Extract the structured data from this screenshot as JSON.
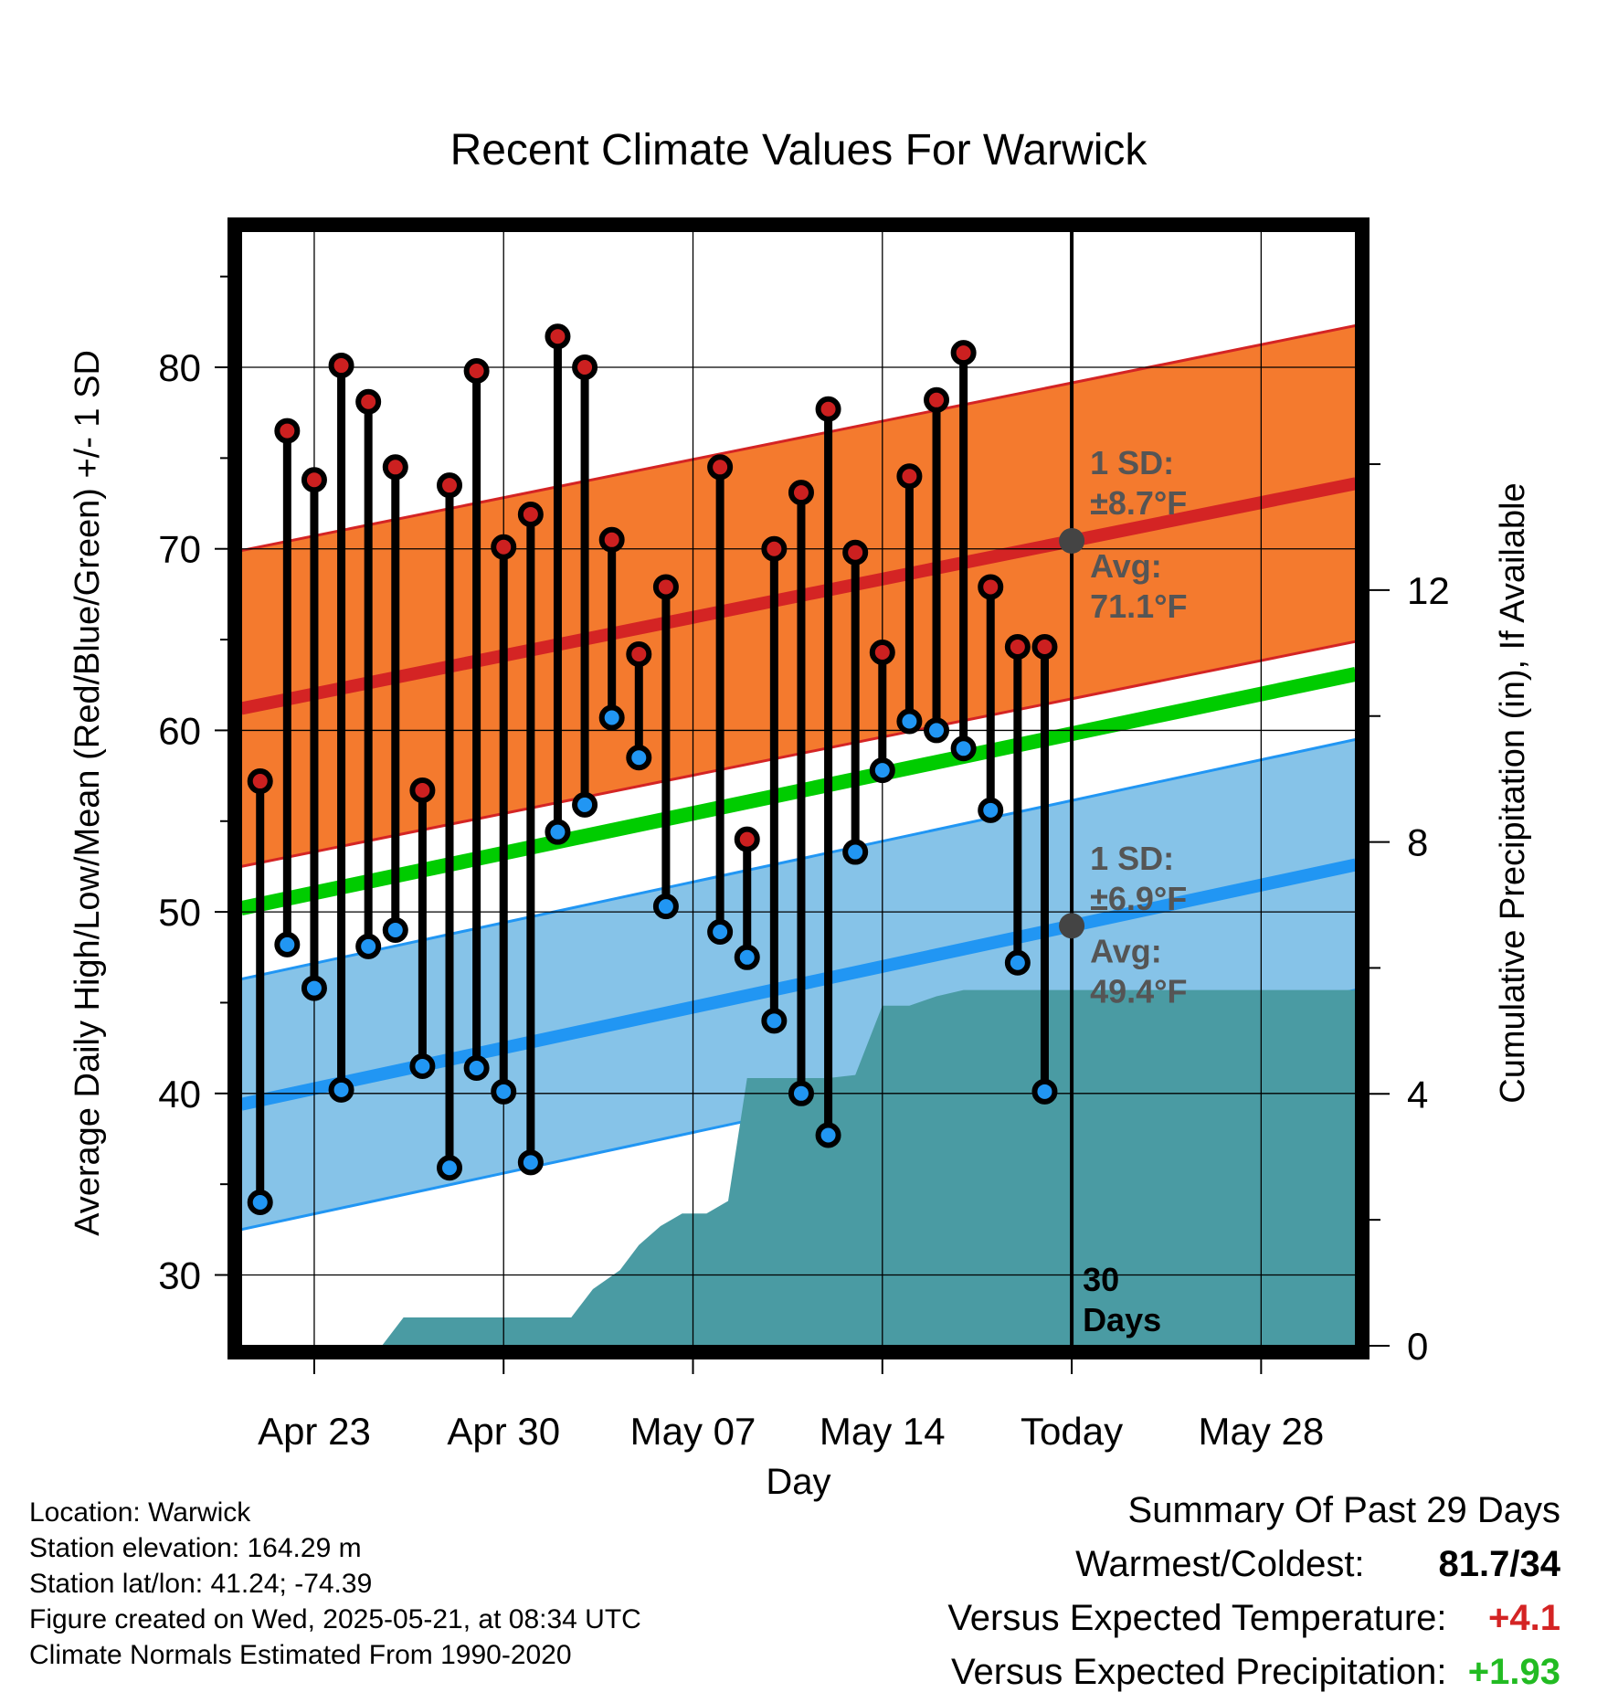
{
  "chart_data": {
    "type": "line",
    "title": "Recent Climate Values For Warwick",
    "xlabel": "Day",
    "ylabel": "Average Daily High/Low/Mean (Red/Blue/Green) +/- 1 SD",
    "y2label": "Cumulative Precipitation (in), If Available",
    "xlim": [
      -0.7,
      40.5
    ],
    "ylim": [
      26.1,
      87.5
    ],
    "y2lim": [
      0,
      17.7
    ],
    "x_ticks": [
      {
        "x": 2,
        "label": "Apr 23"
      },
      {
        "x": 9,
        "label": "Apr 30"
      },
      {
        "x": 16,
        "label": "May 07"
      },
      {
        "x": 23,
        "label": "May 14"
      },
      {
        "x": 30,
        "label": "Today"
      },
      {
        "x": 37,
        "label": "May 28"
      }
    ],
    "y_ticks": [
      30,
      40,
      50,
      60,
      70,
      80
    ],
    "y2_ticks": [
      0,
      4,
      8,
      12
    ],
    "x_day0": "Apr 21",
    "normals": {
      "high_avg": {
        "start": 61.2,
        "end": 73.6
      },
      "high_sd": 8.7,
      "low_avg": {
        "start": 39.4,
        "end": 52.6
      },
      "low_sd": 6.9,
      "mean_avg": {
        "start": 50.2,
        "end": 63.1
      }
    },
    "daily": [
      {
        "day": 0,
        "high": 57.2,
        "low": 34.0
      },
      {
        "day": 1,
        "high": 76.5,
        "low": 48.2
      },
      {
        "day": 2,
        "high": 73.8,
        "low": 45.8
      },
      {
        "day": 3,
        "high": 80.1,
        "low": 40.2
      },
      {
        "day": 4,
        "high": 78.1,
        "low": 48.1
      },
      {
        "day": 5,
        "high": 74.5,
        "low": 49.0
      },
      {
        "day": 6,
        "high": 56.7,
        "low": 41.5
      },
      {
        "day": 7,
        "high": 73.5,
        "low": 35.9
      },
      {
        "day": 8,
        "high": 79.8,
        "low": 41.4
      },
      {
        "day": 9,
        "high": 70.1,
        "low": 40.1
      },
      {
        "day": 10,
        "high": 71.9,
        "low": 36.2
      },
      {
        "day": 11,
        "high": 81.7,
        "low": 54.4
      },
      {
        "day": 12,
        "high": 80.0,
        "low": 55.9
      },
      {
        "day": 13,
        "high": 70.5,
        "low": 60.7
      },
      {
        "day": 14,
        "high": 64.2,
        "low": 58.5
      },
      {
        "day": 15,
        "high": 67.9,
        "low": 50.3
      },
      {
        "day": 17,
        "high": 74.5,
        "low": 48.9
      },
      {
        "day": 18,
        "high": 54.0,
        "low": 47.5
      },
      {
        "day": 19,
        "high": 70.0,
        "low": 44.0
      },
      {
        "day": 20,
        "high": 73.1,
        "low": 40.0
      },
      {
        "day": 21,
        "high": 77.7,
        "low": 37.7
      },
      {
        "day": 22,
        "high": 69.8,
        "low": 53.3
      },
      {
        "day": 23,
        "high": 64.3,
        "low": 57.8
      },
      {
        "day": 24,
        "high": 74.0,
        "low": 60.5
      },
      {
        "day": 25,
        "high": 78.2,
        "low": 60.0
      },
      {
        "day": 26,
        "high": 80.8,
        "low": 59.0
      },
      {
        "day": 27,
        "high": 67.9,
        "low": 55.6
      },
      {
        "day": 28,
        "high": 64.6,
        "low": 47.2
      },
      {
        "day": 29,
        "high": 64.6,
        "low": 40.1
      }
    ],
    "precip_cumulative": [
      {
        "x": 4.5,
        "y": 0
      },
      {
        "x": 5.3,
        "y": 0.45
      },
      {
        "x": 11.5,
        "y": 0.45
      },
      {
        "x": 12.3,
        "y": 0.9
      },
      {
        "x": 13.3,
        "y": 1.2
      },
      {
        "x": 14.0,
        "y": 1.6
      },
      {
        "x": 14.8,
        "y": 1.9
      },
      {
        "x": 15.6,
        "y": 2.1
      },
      {
        "x": 16.5,
        "y": 2.1
      },
      {
        "x": 17.3,
        "y": 2.3
      },
      {
        "x": 18.0,
        "y": 4.25
      },
      {
        "x": 21.0,
        "y": 4.25
      },
      {
        "x": 22.0,
        "y": 4.3
      },
      {
        "x": 23.0,
        "y": 5.4
      },
      {
        "x": 24.0,
        "y": 5.4
      },
      {
        "x": 25.0,
        "y": 5.55
      },
      {
        "x": 26.0,
        "y": 5.65
      },
      {
        "x": 40.5,
        "y": 5.65
      }
    ],
    "annotations": {
      "high_sd": [
        "1 SD:",
        "±8.7°F"
      ],
      "high_avg": [
        "Avg:",
        "71.1°F"
      ],
      "low_sd": [
        "1 SD:",
        "±6.9°F"
      ],
      "low_avg": [
        "Avg:",
        "49.4°F"
      ],
      "today_days": [
        "30",
        "Days"
      ]
    },
    "colors": {
      "high_band": "#f47a2e",
      "high_line": "#d42424",
      "low_band": "#86c3e8",
      "low_line": "#2196f3",
      "mean_line": "#00cc00",
      "precip": "#4a9ba3",
      "high_dot": "#cc2020",
      "low_dot": "#2196f3",
      "annotation": "#555555"
    },
    "grid": true
  },
  "info": {
    "location": "Location: Warwick",
    "elevation": "Station elevation: 164.29 m",
    "latlon": "Station lat/lon: 41.24; -74.39",
    "created": "Figure created on Wed, 2025-05-21, at 08:34 UTC",
    "normals": "Climate Normals Estimated From 1990-2020"
  },
  "summary": {
    "title": "Summary Of Past 29 Days",
    "warmest_label": "Warmest/Coldest:",
    "warmest_value": "81.7/34",
    "temp_label": "Versus Expected Temperature:",
    "temp_value": "+4.1",
    "temp_color": "#d42424",
    "precip_label": "Versus Expected Precipitation:",
    "precip_value": "+1.93",
    "precip_color": "#22bb22"
  }
}
